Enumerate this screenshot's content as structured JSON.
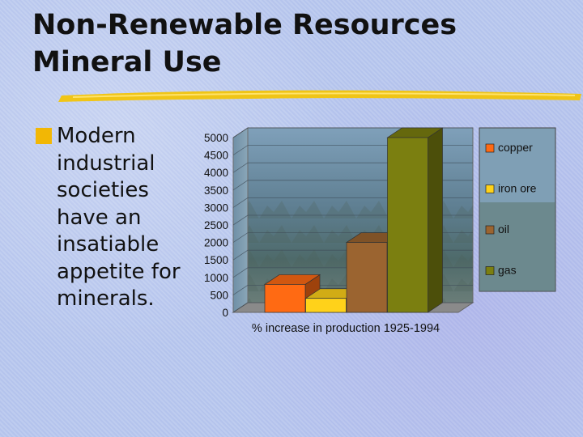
{
  "slide": {
    "title_lines": [
      "Non-Renewable Resources",
      "Mineral Use"
    ],
    "bullet_lines": [
      "Modern",
      "industrial",
      "societies",
      "have an",
      "insatiable",
      "appetite for",
      "minerals."
    ],
    "colors": {
      "bullet": "#f2b705",
      "underline": "#f2c40a"
    }
  },
  "chart_data": {
    "type": "bar",
    "title": "",
    "xlabel": "% increase in production 1925-1994",
    "ylabel": "",
    "ylim": [
      0,
      5000
    ],
    "yticks": [
      0,
      500,
      1000,
      1500,
      2000,
      2500,
      3000,
      3500,
      4000,
      4500,
      5000
    ],
    "grid": true,
    "legend_position": "right",
    "categories": [
      "copper",
      "iron ore",
      "oil",
      "gas"
    ],
    "values": [
      800,
      400,
      2000,
      5000
    ],
    "colors": [
      "#ff6a13",
      "#ffd21a",
      "#9b6430",
      "#7b7f10"
    ]
  }
}
